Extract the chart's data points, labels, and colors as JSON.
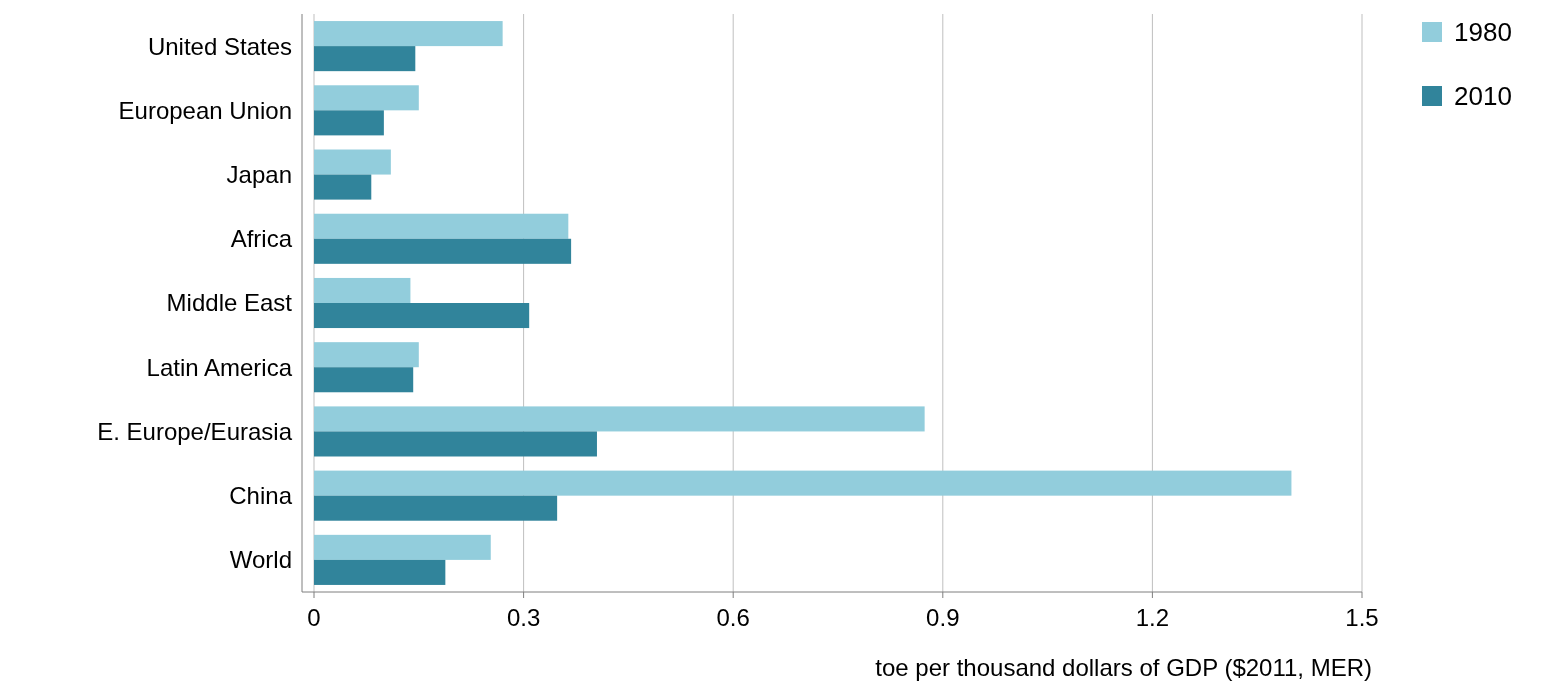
{
  "chart_data": {
    "type": "bar",
    "orientation": "horizontal",
    "xlabel": "toe per thousand dollars of GDP ($2011, MER)",
    "categories": [
      "United States",
      "European Union",
      "Japan",
      "Africa",
      "Middle East",
      "Latin America",
      "E. Europe/Eurasia",
      "China",
      "World"
    ],
    "series": [
      {
        "name": "1980",
        "color": "#92cddc",
        "values": [
          0.27,
          0.15,
          0.11,
          0.364,
          0.138,
          0.15,
          0.874,
          1.399,
          0.253
        ]
      },
      {
        "name": "2010",
        "color": "#31849b",
        "values": [
          0.145,
          0.1,
          0.082,
          0.368,
          0.308,
          0.142,
          0.405,
          0.348,
          0.188
        ]
      }
    ],
    "xlim": [
      0,
      1.5
    ],
    "xticks": [
      0,
      0.3,
      0.6,
      0.9,
      1.2,
      1.5
    ],
    "grid": "x",
    "legend": "top right"
  }
}
